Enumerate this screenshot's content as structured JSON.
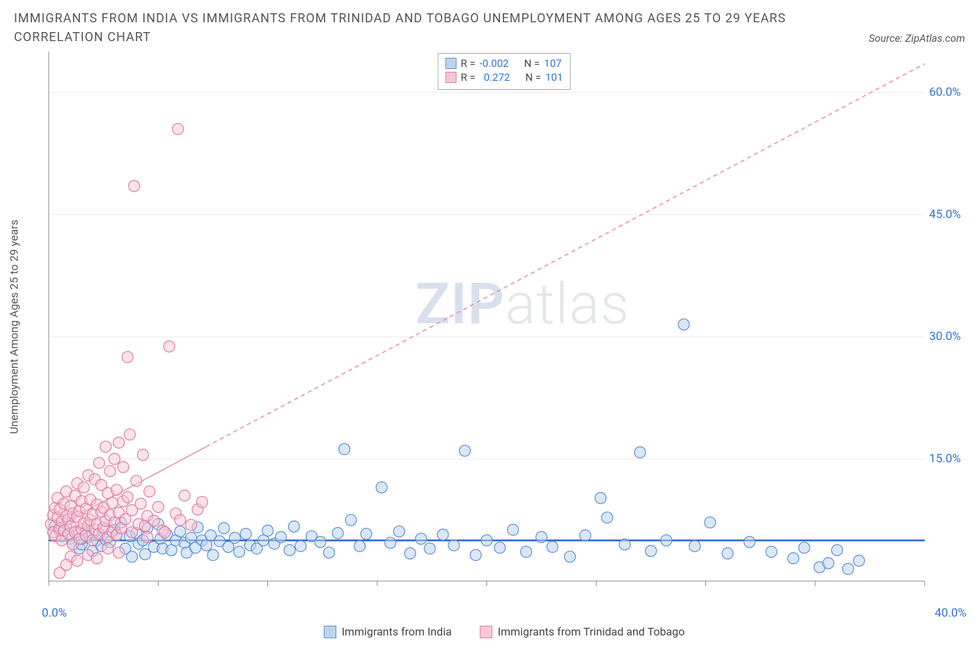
{
  "title_line1": "IMMIGRANTS FROM INDIA VS IMMIGRANTS FROM TRINIDAD AND TOBAGO UNEMPLOYMENT AMONG AGES 25 TO 29 YEARS",
  "title_line2": "CORRELATION CHART",
  "source_label": "Source: ZipAtlas.com",
  "ylabel": "Unemployment Among Ages 25 to 29 years",
  "watermark_bold": "ZIP",
  "watermark_light": "atlas",
  "chart": {
    "type": "scatter",
    "background_color": "#ffffff",
    "grid_color": "#ececec",
    "axis_color": "#888888",
    "tick_color": "#888888",
    "label_color": "#2d73d9",
    "label_fontsize": 17,
    "x_axis": {
      "min": 0,
      "max": 40,
      "ticks": [
        0,
        5,
        10,
        15,
        20,
        25,
        30,
        35,
        40
      ],
      "label_min": "0.0%",
      "label_max": "40.0%"
    },
    "y_axis_right": {
      "min": 0,
      "max": 65,
      "ticks": [
        15,
        30,
        45,
        60
      ],
      "tick_labels": [
        "15.0%",
        "30.0%",
        "45.0%",
        "60.0%"
      ]
    },
    "marker_radius": 8,
    "marker_stroke_width": 1.2,
    "series": [
      {
        "id": "india",
        "name": "Immigrants from India",
        "fill": "#bcd4ef",
        "stroke": "#5a8fd1",
        "fill_opacity": 0.55,
        "R": "-0.002",
        "N": "107",
        "trend": {
          "type": "solid",
          "color": "#1f5fc8",
          "width": 2.3,
          "y1": 5.0,
          "y2": 5.0,
          "dash": ""
        },
        "points": [
          [
            0.3,
            6.8
          ],
          [
            0.5,
            6.2
          ],
          [
            0.6,
            5.5
          ],
          [
            0.8,
            7.0
          ],
          [
            1.0,
            5.2
          ],
          [
            1.1,
            4.5
          ],
          [
            1.3,
            6.0
          ],
          [
            1.4,
            4.0
          ],
          [
            1.5,
            4.5
          ],
          [
            1.5,
            5.2
          ],
          [
            1.7,
            6.1
          ],
          [
            1.8,
            5.4
          ],
          [
            2.0,
            5.8
          ],
          [
            2.0,
            3.7
          ],
          [
            2.2,
            5.0
          ],
          [
            2.4,
            4.3
          ],
          [
            2.5,
            6.4
          ],
          [
            2.6,
            5.1
          ],
          [
            2.8,
            4.8
          ],
          [
            3.0,
            6.3
          ],
          [
            3.1,
            5.6
          ],
          [
            3.3,
            7.2
          ],
          [
            3.5,
            4.0
          ],
          [
            3.7,
            5.5
          ],
          [
            3.8,
            3.0
          ],
          [
            4.0,
            5.9
          ],
          [
            4.1,
            4.6
          ],
          [
            4.3,
            5.0
          ],
          [
            4.4,
            3.3
          ],
          [
            4.5,
            6.5
          ],
          [
            4.8,
            4.2
          ],
          [
            5.0,
            7.0
          ],
          [
            5.1,
            5.2
          ],
          [
            5.2,
            4.0
          ],
          [
            5.4,
            5.7
          ],
          [
            5.6,
            3.8
          ],
          [
            5.8,
            5.0
          ],
          [
            6.0,
            6.1
          ],
          [
            6.2,
            4.7
          ],
          [
            6.3,
            3.5
          ],
          [
            6.5,
            5.3
          ],
          [
            6.7,
            4.1
          ],
          [
            6.8,
            6.6
          ],
          [
            7.0,
            5.0
          ],
          [
            7.2,
            4.4
          ],
          [
            7.4,
            5.6
          ],
          [
            7.5,
            3.2
          ],
          [
            7.8,
            4.9
          ],
          [
            8.0,
            6.5
          ],
          [
            8.2,
            4.2
          ],
          [
            8.5,
            5.3
          ],
          [
            8.7,
            3.6
          ],
          [
            9.0,
            5.8
          ],
          [
            9.2,
            4.4
          ],
          [
            9.5,
            4.0
          ],
          [
            9.8,
            5.0
          ],
          [
            10.0,
            6.2
          ],
          [
            10.3,
            4.6
          ],
          [
            10.6,
            5.4
          ],
          [
            11.0,
            3.8
          ],
          [
            11.2,
            6.7
          ],
          [
            11.5,
            4.3
          ],
          [
            12.0,
            5.5
          ],
          [
            12.4,
            4.8
          ],
          [
            12.8,
            3.5
          ],
          [
            13.2,
            5.9
          ],
          [
            13.5,
            16.2
          ],
          [
            13.8,
            7.5
          ],
          [
            14.2,
            4.3
          ],
          [
            14.5,
            5.8
          ],
          [
            15.2,
            11.5
          ],
          [
            15.6,
            4.7
          ],
          [
            16.0,
            6.1
          ],
          [
            16.5,
            3.4
          ],
          [
            17.0,
            5.2
          ],
          [
            17.4,
            4.0
          ],
          [
            18.0,
            5.7
          ],
          [
            18.5,
            4.4
          ],
          [
            19.0,
            16.0
          ],
          [
            19.5,
            3.2
          ],
          [
            20.0,
            5.0
          ],
          [
            20.6,
            4.1
          ],
          [
            21.2,
            6.3
          ],
          [
            21.8,
            3.6
          ],
          [
            22.5,
            5.4
          ],
          [
            23.0,
            4.2
          ],
          [
            23.8,
            3.0
          ],
          [
            24.5,
            5.6
          ],
          [
            25.2,
            10.2
          ],
          [
            25.5,
            7.8
          ],
          [
            26.3,
            4.5
          ],
          [
            27.0,
            15.8
          ],
          [
            27.5,
            3.7
          ],
          [
            28.2,
            5.0
          ],
          [
            29.0,
            31.5
          ],
          [
            29.5,
            4.3
          ],
          [
            30.2,
            7.2
          ],
          [
            31.0,
            3.4
          ],
          [
            32.0,
            4.8
          ],
          [
            33.0,
            3.6
          ],
          [
            34.0,
            2.8
          ],
          [
            34.5,
            4.1
          ],
          [
            35.2,
            1.7
          ],
          [
            35.6,
            2.2
          ],
          [
            36.0,
            3.8
          ],
          [
            36.5,
            1.5
          ],
          [
            37.0,
            2.5
          ]
        ]
      },
      {
        "id": "trinidad",
        "name": "Immigrants from Trinidad and Tobago",
        "fill": "#f6c7d6",
        "stroke": "#e07ba0",
        "fill_opacity": 0.5,
        "R": "0.272",
        "N": "101",
        "trend": {
          "type": "dashed",
          "color": "#e98fab",
          "width": 1.6,
          "y1": 6.2,
          "y2": 63.5,
          "dash": "6 5",
          "solid_until_x": 7.2
        },
        "points": [
          [
            0.1,
            7.0
          ],
          [
            0.2,
            8.1
          ],
          [
            0.2,
            6.0
          ],
          [
            0.3,
            9.0
          ],
          [
            0.3,
            5.5
          ],
          [
            0.4,
            7.8
          ],
          [
            0.4,
            10.2
          ],
          [
            0.5,
            6.5
          ],
          [
            0.5,
            8.8
          ],
          [
            0.6,
            5.0
          ],
          [
            0.6,
            7.3
          ],
          [
            0.7,
            9.5
          ],
          [
            0.7,
            6.2
          ],
          [
            0.8,
            8.0
          ],
          [
            0.8,
            11.0
          ],
          [
            0.9,
            5.8
          ],
          [
            0.9,
            7.6
          ],
          [
            1.0,
            9.2
          ],
          [
            1.0,
            6.7
          ],
          [
            1.1,
            4.5
          ],
          [
            1.1,
            8.3
          ],
          [
            1.2,
            10.5
          ],
          [
            1.2,
            6.0
          ],
          [
            1.3,
            7.9
          ],
          [
            1.3,
            12.0
          ],
          [
            1.4,
            5.2
          ],
          [
            1.4,
            8.6
          ],
          [
            1.5,
            9.8
          ],
          [
            1.5,
            6.4
          ],
          [
            1.6,
            7.1
          ],
          [
            1.6,
            11.5
          ],
          [
            1.7,
            5.6
          ],
          [
            1.7,
            8.9
          ],
          [
            1.8,
            13.0
          ],
          [
            1.8,
            6.8
          ],
          [
            1.9,
            7.5
          ],
          [
            1.9,
            10.0
          ],
          [
            2.0,
            5.0
          ],
          [
            2.0,
            8.2
          ],
          [
            2.1,
            12.5
          ],
          [
            2.1,
            6.3
          ],
          [
            2.2,
            9.4
          ],
          [
            2.2,
            7.0
          ],
          [
            2.3,
            14.5
          ],
          [
            2.3,
            5.8
          ],
          [
            2.4,
            8.5
          ],
          [
            2.4,
            11.8
          ],
          [
            2.5,
            6.6
          ],
          [
            2.5,
            9.0
          ],
          [
            2.6,
            16.5
          ],
          [
            2.6,
            7.4
          ],
          [
            2.7,
            5.4
          ],
          [
            2.7,
            10.8
          ],
          [
            2.8,
            8.1
          ],
          [
            2.8,
            13.5
          ],
          [
            2.9,
            6.1
          ],
          [
            2.9,
            9.6
          ],
          [
            3.0,
            15.0
          ],
          [
            3.0,
            7.2
          ],
          [
            3.1,
            5.7
          ],
          [
            3.1,
            11.2
          ],
          [
            3.2,
            8.4
          ],
          [
            3.2,
            17.0
          ],
          [
            3.3,
            6.5
          ],
          [
            3.4,
            9.8
          ],
          [
            3.4,
            14.0
          ],
          [
            3.5,
            7.6
          ],
          [
            3.6,
            27.5
          ],
          [
            3.6,
            10.3
          ],
          [
            3.7,
            18.0
          ],
          [
            3.8,
            6.0
          ],
          [
            3.8,
            8.7
          ],
          [
            3.9,
            48.5
          ],
          [
            4.0,
            12.3
          ],
          [
            4.1,
            7.0
          ],
          [
            4.2,
            9.5
          ],
          [
            4.3,
            15.5
          ],
          [
            4.4,
            6.8
          ],
          [
            4.5,
            8.0
          ],
          [
            4.6,
            11.0
          ],
          [
            4.8,
            7.4
          ],
          [
            5.0,
            9.1
          ],
          [
            5.2,
            6.2
          ],
          [
            5.5,
            28.8
          ],
          [
            5.8,
            8.3
          ],
          [
            6.0,
            7.5
          ],
          [
            6.2,
            10.5
          ],
          [
            6.5,
            6.9
          ],
          [
            6.8,
            8.8
          ],
          [
            7.0,
            9.7
          ],
          [
            5.9,
            55.5
          ],
          [
            1.0,
            3.0
          ],
          [
            1.3,
            2.5
          ],
          [
            1.8,
            3.2
          ],
          [
            2.2,
            2.8
          ],
          [
            2.7,
            4.0
          ],
          [
            3.2,
            3.5
          ],
          [
            0.5,
            1.0
          ],
          [
            0.8,
            2.0
          ],
          [
            4.5,
            5.4
          ],
          [
            5.3,
            6.0
          ]
        ]
      }
    ]
  },
  "legend_top": {
    "r_label": "R =",
    "n_label": "N ="
  },
  "legend_bottom": {
    "india": "Immigrants from India",
    "trinidad": "Immigrants from Trinidad and Tobago"
  }
}
